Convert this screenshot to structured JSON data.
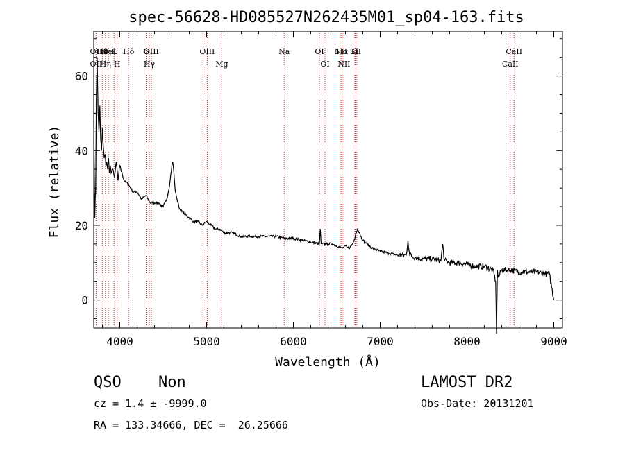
{
  "chart_data": {
    "type": "line",
    "title": "spec-56628-HD085527N262435M01_sp04-163.fits",
    "xlabel": "Wavelength (Å)",
    "ylabel": "Flux (relative)",
    "xlim": [
      3700,
      9100
    ],
    "ylim": [
      -7.5,
      72
    ],
    "xticks": [
      4000,
      5000,
      6000,
      7000,
      8000,
      9000
    ],
    "yticks": [
      0,
      20,
      40,
      60
    ],
    "grid": false,
    "series_color": "#000000",
    "line_color": "#cc3333",
    "spectrum": {
      "x": [
        3700,
        3712,
        3722,
        3730,
        3740,
        3750,
        3760,
        3770,
        3780,
        3790,
        3800,
        3810,
        3820,
        3830,
        3840,
        3850,
        3860,
        3870,
        3880,
        3890,
        3900,
        3920,
        3940,
        3960,
        3980,
        4000,
        4050,
        4100,
        4150,
        4200,
        4250,
        4300,
        4350,
        4400,
        4450,
        4480,
        4500,
        4520,
        4540,
        4560,
        4580,
        4600,
        4610,
        4620,
        4630,
        4640,
        4660,
        4680,
        4700,
        4750,
        4800,
        4850,
        4900,
        4950,
        5000,
        5050,
        5100,
        5150,
        5200,
        5300,
        5400,
        5500,
        5600,
        5700,
        5800,
        5900,
        6000,
        6100,
        6200,
        6300,
        6310,
        6320,
        6330,
        6400,
        6450,
        6500,
        6550,
        6580,
        6600,
        6620,
        6650,
        6680,
        6700,
        6720,
        6740,
        6760,
        6780,
        6800,
        6850,
        6900,
        7000,
        7100,
        7200,
        7300,
        7320,
        7340,
        7400,
        7500,
        7600,
        7700,
        7720,
        7740,
        7800,
        7900,
        8000,
        8100,
        8200,
        8300,
        8330,
        8340,
        8350,
        8360,
        8400,
        8500,
        8600,
        8700,
        8800,
        8900,
        8950,
        9000
      ],
      "y": [
        48,
        22,
        30,
        55,
        65,
        50,
        45,
        52,
        43,
        40,
        46,
        41,
        38,
        39,
        36,
        37,
        35,
        38,
        34,
        36,
        34,
        35,
        33,
        37,
        32,
        36,
        32,
        31,
        29,
        29,
        27,
        28,
        26,
        26,
        26,
        25,
        25,
        26,
        27,
        29,
        32,
        36,
        37,
        35,
        32,
        29,
        27,
        25,
        24,
        23,
        22,
        21,
        21,
        20,
        21,
        20,
        19,
        19,
        18,
        18,
        17,
        17,
        17,
        17,
        17,
        16.5,
        16.5,
        16,
        15.5,
        15,
        19,
        15,
        15,
        15,
        15,
        14.5,
        14,
        14,
        14.5,
        14,
        14,
        15,
        16,
        18,
        19,
        18,
        17,
        16,
        15,
        14,
        13,
        12.5,
        12,
        12,
        16,
        12,
        11.5,
        11,
        11,
        10.5,
        15,
        10.5,
        10,
        10,
        9.5,
        9,
        9,
        8,
        5,
        -9,
        8,
        6,
        8,
        8,
        7.5,
        7.5,
        7.5,
        7,
        7,
        0
      ]
    },
    "lines": [
      {
        "wave": 3727,
        "top": "OII",
        "bottom": "OII"
      },
      {
        "wave": 3798,
        "top": "Hθ",
        "bottom": ""
      },
      {
        "wave": 3835,
        "top": "Hη",
        "bottom": "Hη"
      },
      {
        "wave": 3869,
        "top": "HeI",
        "bottom": ""
      },
      {
        "wave": 3934,
        "top": "K",
        "bottom": ""
      },
      {
        "wave": 3969,
        "top": "",
        "bottom": "H"
      },
      {
        "wave": 4102,
        "top": "Hδ",
        "bottom": ""
      },
      {
        "wave": 4304,
        "top": "G",
        "bottom": ""
      },
      {
        "wave": 4340,
        "top": "",
        "bottom": "Hγ"
      },
      {
        "wave": 4363,
        "top": "OIII",
        "bottom": ""
      },
      {
        "wave": 4959,
        "top": "",
        "bottom": ""
      },
      {
        "wave": 5007,
        "top": "OIII",
        "bottom": ""
      },
      {
        "wave": 5175,
        "top": "",
        "bottom": "Mg"
      },
      {
        "wave": 5894,
        "top": "Na",
        "bottom": ""
      },
      {
        "wave": 6300,
        "top": "OI",
        "bottom": ""
      },
      {
        "wave": 6364,
        "top": "",
        "bottom": "OI"
      },
      {
        "wave": 6548,
        "top": "NII",
        "bottom": ""
      },
      {
        "wave": 6563,
        "top": "Hα",
        "bottom": ""
      },
      {
        "wave": 6583,
        "top": "",
        "bottom": "NII"
      },
      {
        "wave": 6708,
        "top": "Li",
        "bottom": ""
      },
      {
        "wave": 6716,
        "top": "SII",
        "bottom": ""
      },
      {
        "wave": 6731,
        "top": "",
        "bottom": ""
      },
      {
        "wave": 8498,
        "top": "",
        "bottom": "CaII"
      },
      {
        "wave": 8542,
        "top": "CaII",
        "bottom": ""
      }
    ]
  },
  "info": {
    "class": "QSO",
    "subclass": "Non",
    "survey": "LAMOST DR2",
    "cz": "cz = 1.4 ± -9999.0",
    "obs_date": "Obs-Date: 20131201",
    "coords": "RA = 133.34666, DEC =  26.25666"
  }
}
